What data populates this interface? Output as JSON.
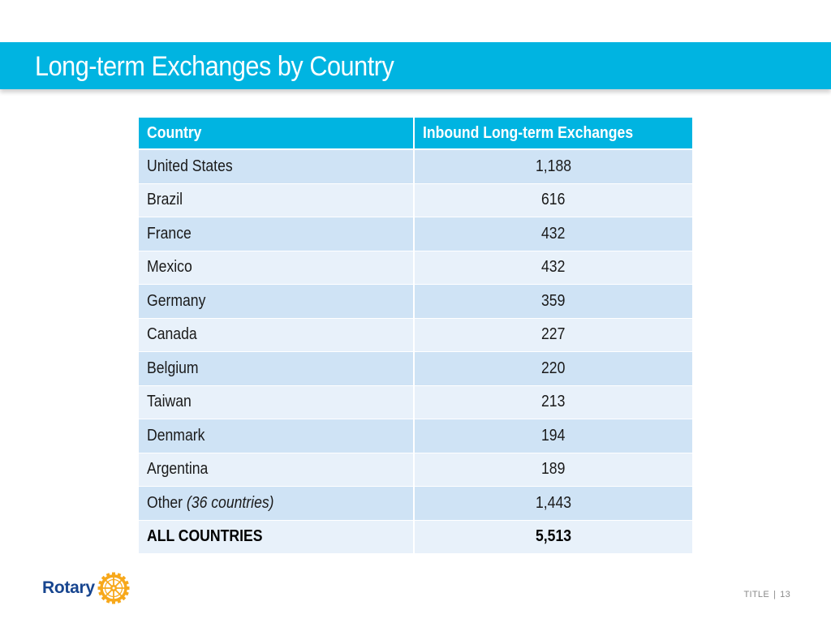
{
  "slide": {
    "title": "Long-term Exchanges by Country"
  },
  "table": {
    "headers": [
      "Country",
      "Inbound Long-term Exchanges"
    ],
    "rows": [
      {
        "country": "United States",
        "note": "",
        "value": "1,188"
      },
      {
        "country": "Brazil",
        "note": "",
        "value": "616"
      },
      {
        "country": "France",
        "note": "",
        "value": "432"
      },
      {
        "country": "Mexico",
        "note": "",
        "value": "432"
      },
      {
        "country": "Germany",
        "note": "",
        "value": "359"
      },
      {
        "country": "Canada",
        "note": "",
        "value": "227"
      },
      {
        "country": "Belgium",
        "note": "",
        "value": "220"
      },
      {
        "country": "Taiwan",
        "note": "",
        "value": "213"
      },
      {
        "country": "Denmark",
        "note": "",
        "value": "194"
      },
      {
        "country": "Argentina",
        "note": "",
        "value": "189"
      },
      {
        "country": "Other",
        "note": "(36 countries)",
        "value": "1,443"
      }
    ],
    "total": {
      "country": "ALL COUNTRIES",
      "value": "5,513"
    }
  },
  "logo": {
    "word": "Rotary",
    "icon": "rotary-wheel-icon"
  },
  "footer": {
    "label": "TITLE",
    "separator": "|",
    "page_number": "13"
  },
  "colors": {
    "accent": "#00b4e1",
    "row_odd": "#cfe3f5",
    "row_even": "#e8f1fa",
    "logo_blue": "#17458f",
    "logo_gold": "#f7a81b"
  }
}
